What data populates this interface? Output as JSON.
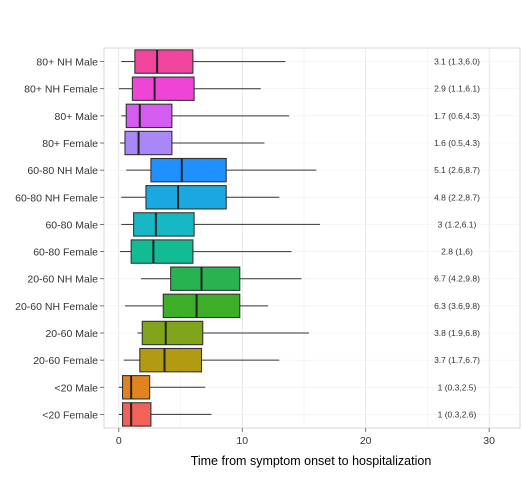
{
  "chart_data": {
    "type": "boxplot",
    "orientation": "horizontal",
    "title": "",
    "xlabel": "Time from symptom onset to hospitalization",
    "ylabel": "",
    "xlim": [
      -1.2,
      32.5
    ],
    "xticks": [
      0,
      10,
      20,
      30
    ],
    "grid": true,
    "legend": "none",
    "categories": [
      "80+ NH Male",
      "80+ NH Female",
      "80+ Male",
      "80+ Female",
      "60-80 NH Male",
      "60-80 NH Female",
      "60-80 Male",
      "60-80 Female",
      "20-60 NH Male",
      "20-60 NH Female",
      "20-60 Male",
      "20-60 Female",
      "<20 Male",
      "<20 Female"
    ],
    "boxes": [
      {
        "label": "80+ NH Male",
        "whisker_low": 0.2,
        "q1": 1.3,
        "median": 3.1,
        "q3": 6.0,
        "whisker_high": 13.5,
        "annotation": "3.1 (1.3,6.0)",
        "color": "#f1449c"
      },
      {
        "label": "80+ NH Female",
        "whisker_low": 0.0,
        "q1": 1.1,
        "median": 2.9,
        "q3": 6.1,
        "whisker_high": 11.5,
        "annotation": "2.9 (1.1,6.1)",
        "color": "#ef45d6"
      },
      {
        "label": "80+ Male",
        "whisker_low": 0.2,
        "q1": 0.6,
        "median": 1.7,
        "q3": 4.3,
        "whisker_high": 13.8,
        "annotation": "1.7 (0.6,4.3)",
        "color": "#d55cf0"
      },
      {
        "label": "80+ Female",
        "whisker_low": 0.1,
        "q1": 0.5,
        "median": 1.6,
        "q3": 4.3,
        "whisker_high": 11.8,
        "annotation": "1.6 (0.5,4.3)",
        "color": "#a987f7"
      },
      {
        "label": "60-80 NH Male",
        "whisker_low": 0.6,
        "q1": 2.6,
        "median": 5.1,
        "q3": 8.7,
        "whisker_high": 16.0,
        "annotation": "5.1 (2.6,8.7)",
        "color": "#1e90ff"
      },
      {
        "label": "60-80 NH Female",
        "whisker_low": 0.2,
        "q1": 2.2,
        "median": 4.8,
        "q3": 8.7,
        "whisker_high": 13.0,
        "annotation": "4.8 (2.2,8.7)",
        "color": "#1ba8e0"
      },
      {
        "label": "60-80 Male",
        "whisker_low": 0.2,
        "q1": 1.2,
        "median": 3.0,
        "q3": 6.1,
        "whisker_high": 16.3,
        "annotation": "3 (1.2,6.1)",
        "color": "#17b8c4"
      },
      {
        "label": "60-80 Female",
        "whisker_low": 0.1,
        "q1": 1.0,
        "median": 2.8,
        "q3": 6.0,
        "whisker_high": 14.0,
        "annotation": "2.8 (1,6)",
        "color": "#13bb95"
      },
      {
        "label": "20-60 NH Male",
        "whisker_low": 1.8,
        "q1": 4.2,
        "median": 6.7,
        "q3": 9.8,
        "whisker_high": 14.8,
        "annotation": "6.7 (4.2,9.8)",
        "color": "#27b34f"
      },
      {
        "label": "20-60 NH Female",
        "whisker_low": 0.5,
        "q1": 3.6,
        "median": 6.3,
        "q3": 9.8,
        "whisker_high": 12.1,
        "annotation": "6.3 (3.6,9.8)",
        "color": "#3dae27"
      },
      {
        "label": "20-60 Male",
        "whisker_low": 1.5,
        "q1": 1.9,
        "median": 3.8,
        "q3": 6.8,
        "whisker_high": 15.4,
        "annotation": "3.8 (1.9,6.8)",
        "color": "#80a51b"
      },
      {
        "label": "20-60 Female",
        "whisker_low": 0.4,
        "q1": 1.7,
        "median": 3.7,
        "q3": 6.7,
        "whisker_high": 13.0,
        "annotation": "3.7 (1.7,6.7)",
        "color": "#b29b13"
      },
      {
        "label": "<20 Male",
        "whisker_low": 0.0,
        "q1": 0.3,
        "median": 1.0,
        "q3": 2.5,
        "whisker_high": 7.0,
        "annotation": "1 (0.3,2.5)",
        "color": "#e2841e"
      },
      {
        "label": "<20 Female",
        "whisker_low": 0.0,
        "q1": 0.3,
        "median": 1.0,
        "q3": 2.6,
        "whisker_high": 7.5,
        "annotation": "1 (0.3,2.6)",
        "color": "#f0625a"
      }
    ]
  }
}
